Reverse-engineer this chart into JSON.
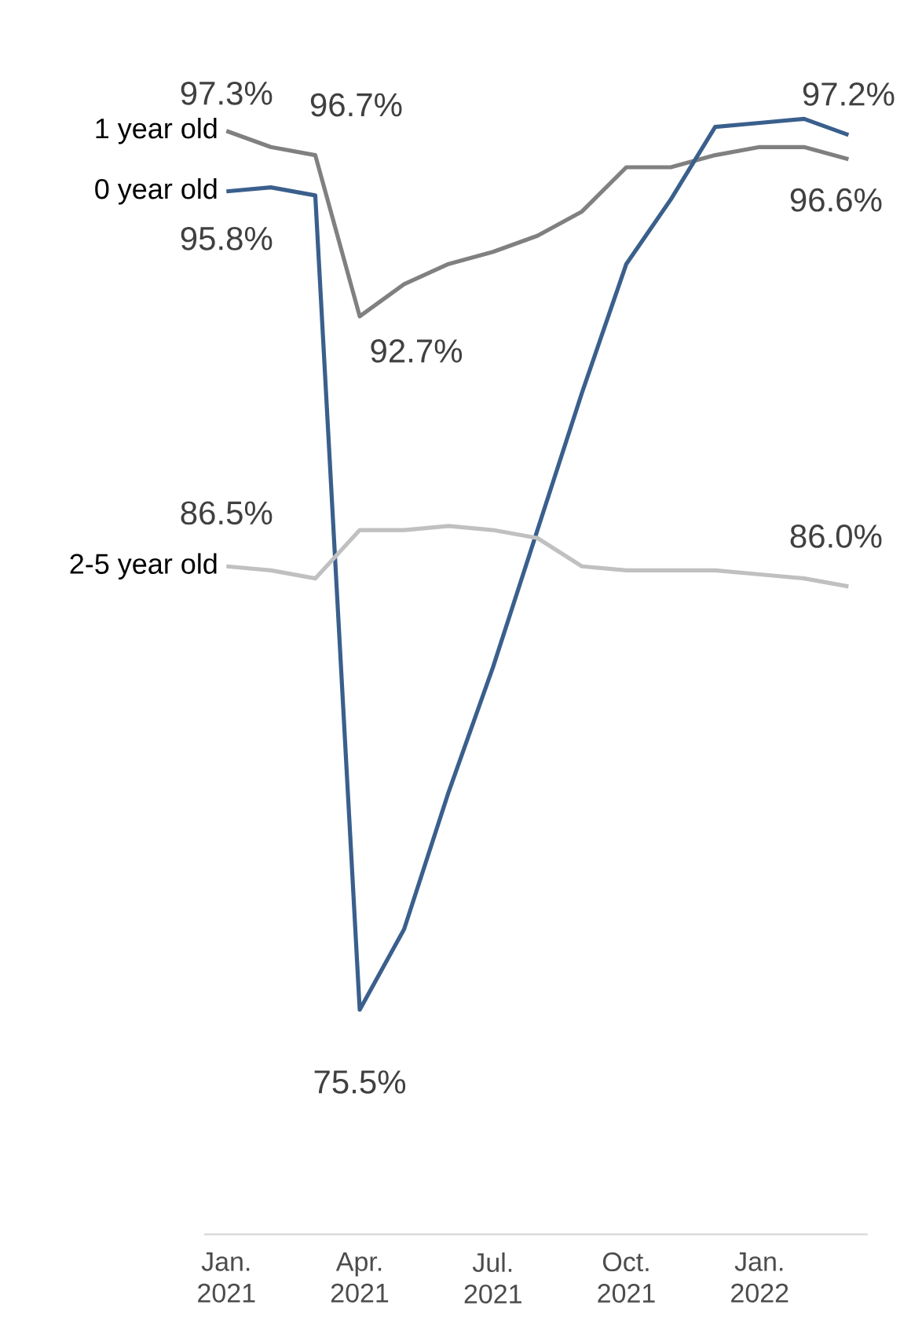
{
  "chart_data": {
    "type": "line",
    "categories": [
      "Jan. 2021",
      null,
      null,
      "Apr. 2021",
      null,
      null,
      "Jul. 2021",
      null,
      null,
      "Oct. 2021",
      null,
      null,
      "Jan. 2022",
      null,
      null
    ],
    "series": [
      {
        "name": "1 year old",
        "color": "#808080",
        "values": [
          97.3,
          96.9,
          96.7,
          92.7,
          93.5,
          94.0,
          94.3,
          94.7,
          95.3,
          96.4,
          96.4,
          96.7,
          96.9,
          96.9,
          96.6
        ],
        "value_labels": [
          "97.3%",
          null,
          "96.7%",
          "92.7%",
          null,
          null,
          null,
          null,
          null,
          null,
          null,
          null,
          null,
          null,
          "96.6%"
        ]
      },
      {
        "name": "0 year old",
        "color": "#3a5f8c",
        "values": [
          95.8,
          95.9,
          95.7,
          75.5,
          77.5,
          80.9,
          84.0,
          87.4,
          90.8,
          94.0,
          95.6,
          97.4,
          97.5,
          97.6,
          97.2
        ],
        "value_labels": [
          "95.8%",
          null,
          null,
          "75.5%",
          null,
          null,
          null,
          null,
          null,
          null,
          null,
          null,
          null,
          null,
          "97.2%"
        ]
      },
      {
        "name": "2-5 year old",
        "color": "#c0c0c0",
        "values": [
          86.5,
          86.4,
          86.2,
          87.4,
          87.4,
          87.5,
          87.4,
          87.2,
          86.5,
          86.4,
          86.4,
          86.4,
          86.3,
          86.2,
          86.0
        ],
        "value_labels": [
          "86.5%",
          null,
          null,
          null,
          null,
          null,
          null,
          null,
          null,
          null,
          null,
          null,
          null,
          null,
          "86.0%"
        ]
      }
    ],
    "tick_labels": "x",
    "legend": false,
    "grid": false,
    "marker": "none",
    "line_style": "solid"
  }
}
